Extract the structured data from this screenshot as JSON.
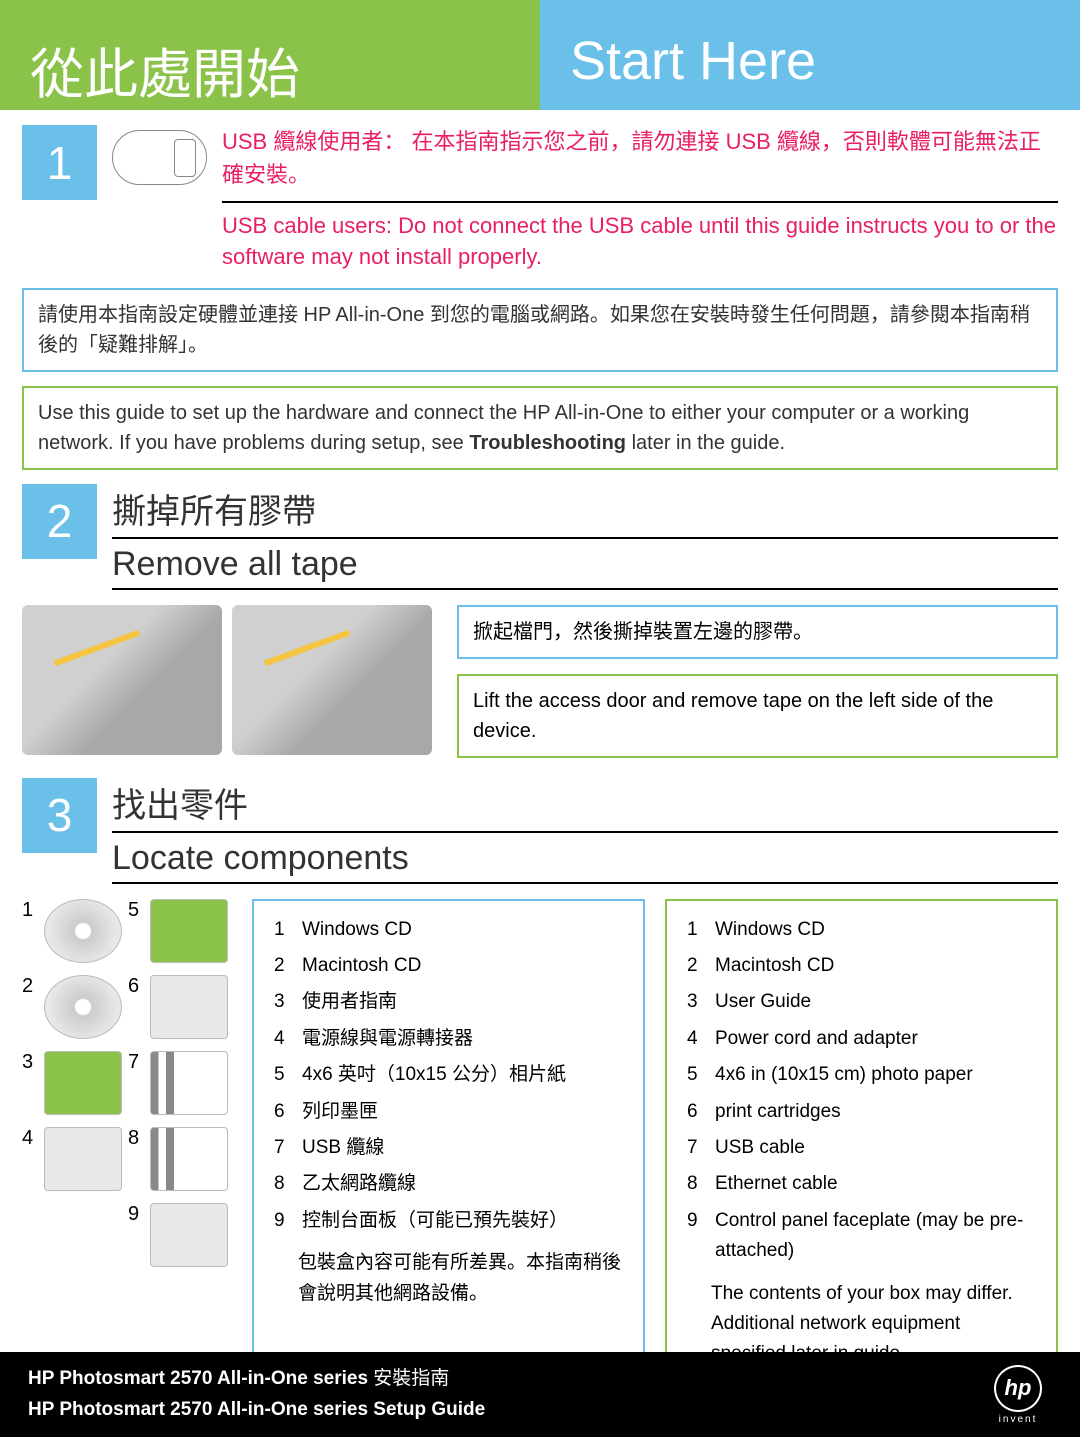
{
  "colors": {
    "green": "#8bc34a",
    "blue": "#6ac0e8",
    "warning": "#e91e63",
    "black": "#000000",
    "white": "#ffffff"
  },
  "header": {
    "left": "從此處開始",
    "right": "Start Here"
  },
  "step1": {
    "num": "1",
    "warning_zh": "USB 纜線使用者： 在本指南指示您之前，請勿連接 USB 纜線，否則軟體可能無法正確安裝。",
    "warning_en": "USB cable users: Do not connect the USB cable until this guide instructs you to or the software may not install properly."
  },
  "guide_box_zh": "請使用本指南設定硬體並連接 HP All-in-One 到您的電腦或網路。如果您在安裝時發生任何問題，請參閱本指南稍後的「疑難排解」。",
  "guide_box_en_a": "Use this guide to set up the hardware and connect the HP All-in-One to either your computer or a working network. If you have problems during setup, see ",
  "guide_box_en_b": "Troubleshooting",
  "guide_box_en_c": " later in the guide.",
  "step2": {
    "num": "2",
    "title_zh": "撕掉所有膠帶",
    "title_en": "Remove all tape",
    "side_zh": "掀起檔門，然後撕掉裝置左邊的膠帶。",
    "side_en": "Lift the access door and remove tape on the left side of the device."
  },
  "step3": {
    "num": "3",
    "title_zh": "找出零件",
    "title_en": "Locate components"
  },
  "components_zh": [
    {
      "n": "1",
      "t": "Windows CD"
    },
    {
      "n": "2",
      "t": "Macintosh CD"
    },
    {
      "n": "3",
      "t": "使用者指南"
    },
    {
      "n": "4",
      "t": "電源線與電源轉接器"
    },
    {
      "n": "5",
      "t": "4x6 英吋（10x15 公分）相片紙"
    },
    {
      "n": "6",
      "t": "列印墨匣"
    },
    {
      "n": "7",
      "t": "USB 纜線"
    },
    {
      "n": "8",
      "t": "乙太網路纜線"
    },
    {
      "n": "9",
      "t": "控制台面板（可能已預先裝好）"
    }
  ],
  "note_zh": "包裝盒內容可能有所差異。本指南稍後會說明其他網路設備。",
  "components_en": [
    {
      "n": "1",
      "t": "Windows CD"
    },
    {
      "n": "2",
      "t": "Macintosh CD"
    },
    {
      "n": "3",
      "t": "User Guide"
    },
    {
      "n": "4",
      "t": "Power cord and adapter"
    },
    {
      "n": "5",
      "t": "4x6 in (10x15 cm) photo paper"
    },
    {
      "n": "6",
      "t": "print cartridges"
    },
    {
      "n": "7",
      "t": "USB cable"
    },
    {
      "n": "8",
      "t": "Ethernet cable"
    },
    {
      "n": "9",
      "t": "Control panel faceplate (may be pre-attached)"
    }
  ],
  "note_en": "The contents of your box may differ. Additional network equipment specified later in guide.",
  "footer": {
    "line1_a": "HP Photosmart 2570 All-in-One series",
    "line1_b": " 安裝指南",
    "line2": "HP Photosmart 2570 All-in-One series Setup Guide",
    "logo": "hp",
    "invent": "invent"
  }
}
